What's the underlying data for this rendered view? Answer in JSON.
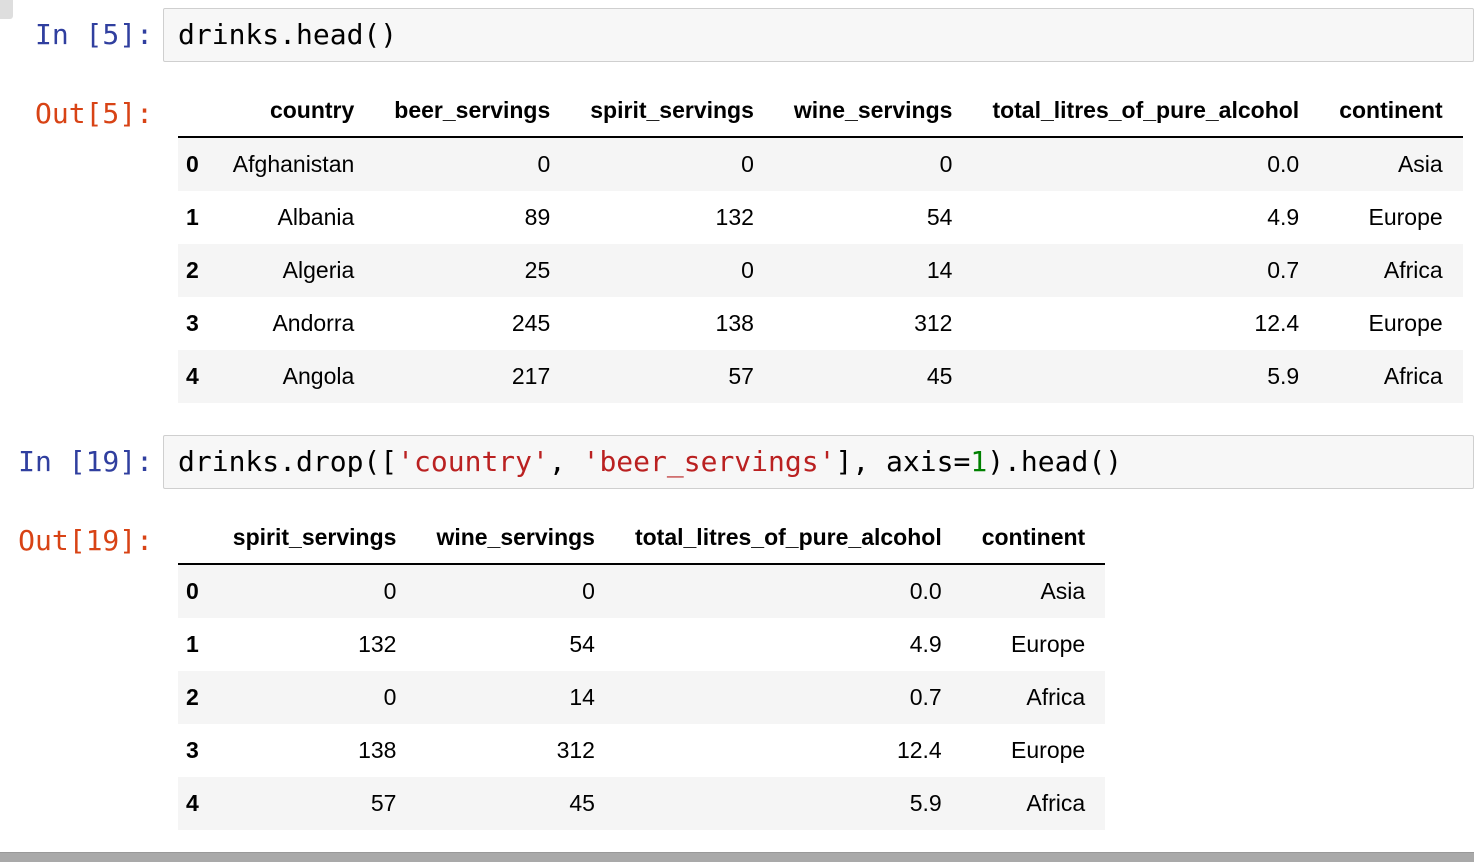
{
  "colors": {
    "in_prompt": "#303F9F",
    "out_prompt": "#D84315",
    "string_token": "#BA2121",
    "number_token": "#008000",
    "input_bg": "#F7F7F7",
    "input_border": "#CFCFCF",
    "row_stripe": "#F5F5F5",
    "scrollbar": "#A9A9A9"
  },
  "cells": [
    {
      "prompt_in": "In [5]:",
      "prompt_out": "Out[5]:",
      "code_tokens": [
        {
          "t": "drinks.head()",
          "c": "plain"
        }
      ],
      "table": {
        "columns": [
          "country",
          "beer_servings",
          "spirit_servings",
          "wine_servings",
          "total_litres_of_pure_alcohol",
          "continent"
        ],
        "index": [
          "0",
          "1",
          "2",
          "3",
          "4"
        ],
        "rows": [
          [
            "Afghanistan",
            "0",
            "0",
            "0",
            "0.0",
            "Asia"
          ],
          [
            "Albania",
            "89",
            "132",
            "54",
            "4.9",
            "Europe"
          ],
          [
            "Algeria",
            "25",
            "0",
            "14",
            "0.7",
            "Africa"
          ],
          [
            "Andorra",
            "245",
            "138",
            "312",
            "12.4",
            "Europe"
          ],
          [
            "Angola",
            "217",
            "57",
            "45",
            "5.9",
            "Africa"
          ]
        ]
      }
    },
    {
      "prompt_in": "In [19]:",
      "prompt_out": "Out[19]:",
      "code_tokens": [
        {
          "t": "drinks.drop([",
          "c": "plain"
        },
        {
          "t": "'country'",
          "c": "string"
        },
        {
          "t": ", ",
          "c": "plain"
        },
        {
          "t": "'beer_servings'",
          "c": "string"
        },
        {
          "t": "], axis=",
          "c": "plain"
        },
        {
          "t": "1",
          "c": "number"
        },
        {
          "t": ").head()",
          "c": "plain"
        }
      ],
      "table": {
        "columns": [
          "spirit_servings",
          "wine_servings",
          "total_litres_of_pure_alcohol",
          "continent"
        ],
        "index": [
          "0",
          "1",
          "2",
          "3",
          "4"
        ],
        "rows": [
          [
            "0",
            "0",
            "0.0",
            "Asia"
          ],
          [
            "132",
            "54",
            "4.9",
            "Europe"
          ],
          [
            "0",
            "14",
            "0.7",
            "Africa"
          ],
          [
            "138",
            "312",
            "12.4",
            "Europe"
          ],
          [
            "57",
            "45",
            "5.9",
            "Africa"
          ]
        ]
      }
    }
  ]
}
